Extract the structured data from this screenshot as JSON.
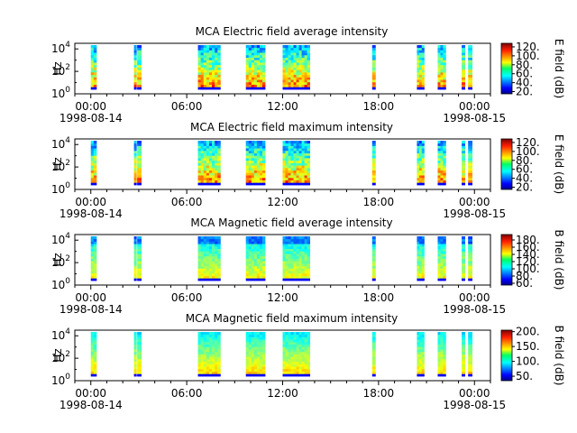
{
  "chart_data": [
    {
      "type": "heatmap",
      "title": "MCA  Electric field average intensity",
      "ylabel": "Hz",
      "colorbar_label": "E field (dB)",
      "colorbar_ticks": [
        "20.",
        "40.",
        "60.",
        "80.",
        "100.",
        "120."
      ],
      "colorbar_range": [
        15,
        128
      ],
      "colormap": "jet",
      "style": "electric",
      "x_ticks": [
        "00:00",
        "06:00",
        "12:00",
        "18:00",
        "00:00"
      ],
      "x_tick_sub": [
        "1998-08-14",
        "",
        "",
        "",
        "1998-08-15"
      ],
      "y_ticks": [
        "10^0",
        "10^2",
        "10^4"
      ],
      "xlim_hours": [
        -1,
        25
      ],
      "ylim_log10": [
        0,
        4.5
      ],
      "data_bursts_hours": [
        [
          0.0,
          0.35
        ],
        [
          2.7,
          2.85
        ],
        [
          2.9,
          3.15
        ],
        [
          6.7,
          8.1
        ],
        [
          9.7,
          10.9
        ],
        [
          12.0,
          13.7
        ],
        [
          17.6,
          17.8
        ],
        [
          20.4,
          20.85
        ],
        [
          21.7,
          22.2
        ],
        [
          23.2,
          23.4
        ],
        [
          23.6,
          23.85
        ]
      ]
    },
    {
      "type": "heatmap",
      "title": "MCA  Electric field maximum intensity",
      "ylabel": "Hz",
      "colorbar_label": "E field (dB)",
      "colorbar_ticks": [
        "20.",
        "40.",
        "60.",
        "80.",
        "100.",
        "120."
      ],
      "colorbar_range": [
        15,
        128
      ],
      "colormap": "jet",
      "style": "electric",
      "x_ticks": [
        "00:00",
        "06:00",
        "12:00",
        "18:00",
        "00:00"
      ],
      "x_tick_sub": [
        "1998-08-14",
        "",
        "",
        "",
        "1998-08-15"
      ],
      "y_ticks": [
        "10^0",
        "10^2",
        "10^4"
      ],
      "xlim_hours": [
        -1,
        25
      ],
      "ylim_log10": [
        0,
        4.5
      ],
      "data_bursts_hours": [
        [
          0.0,
          0.35
        ],
        [
          2.7,
          2.85
        ],
        [
          2.9,
          3.15
        ],
        [
          6.7,
          8.1
        ],
        [
          9.7,
          10.9
        ],
        [
          12.0,
          13.7
        ],
        [
          17.6,
          17.8
        ],
        [
          20.4,
          20.85
        ],
        [
          21.7,
          22.2
        ],
        [
          23.2,
          23.4
        ],
        [
          23.6,
          23.85
        ]
      ]
    },
    {
      "type": "heatmap",
      "title": "MCA  Magnetic field average intensity",
      "ylabel": "Hz",
      "colorbar_label": "B field (dB)",
      "colorbar_ticks": [
        "60.",
        "80.",
        "100.",
        "120.",
        "140.",
        "160.",
        "180."
      ],
      "colorbar_range": [
        55,
        195
      ],
      "colormap": "jet",
      "style": "magnetic",
      "x_ticks": [
        "00:00",
        "06:00",
        "12:00",
        "18:00",
        "00:00"
      ],
      "x_tick_sub": [
        "1998-08-14",
        "",
        "",
        "",
        "1998-08-15"
      ],
      "y_ticks": [
        "10^0",
        "10^2",
        "10^4"
      ],
      "xlim_hours": [
        -1,
        25
      ],
      "ylim_log10": [
        0,
        4.5
      ],
      "data_bursts_hours": [
        [
          0.0,
          0.35
        ],
        [
          2.7,
          2.85
        ],
        [
          2.9,
          3.15
        ],
        [
          6.7,
          8.1
        ],
        [
          9.7,
          10.9
        ],
        [
          12.0,
          13.7
        ],
        [
          17.6,
          17.8
        ],
        [
          20.4,
          20.85
        ],
        [
          21.7,
          22.2
        ],
        [
          23.2,
          23.4
        ],
        [
          23.6,
          23.85
        ]
      ]
    },
    {
      "type": "heatmap",
      "title": "MCA  Magnetic field maximum intensity",
      "ylabel": "Hz",
      "colorbar_label": "B field (dB)",
      "colorbar_ticks": [
        "50.",
        "100.",
        "150.",
        "200."
      ],
      "colorbar_range": [
        35,
        205
      ],
      "colormap": "jet",
      "style": "magnetic-max",
      "x_ticks": [
        "00:00",
        "06:00",
        "12:00",
        "18:00",
        "00:00"
      ],
      "x_tick_sub": [
        "1998-08-14",
        "",
        "",
        "",
        "1998-08-15"
      ],
      "y_ticks": [
        "10^0",
        "10^2",
        "10^4"
      ],
      "xlim_hours": [
        -1,
        25
      ],
      "ylim_log10": [
        0,
        4.5
      ],
      "data_bursts_hours": [
        [
          0.0,
          0.35
        ],
        [
          2.7,
          2.85
        ],
        [
          2.9,
          3.15
        ],
        [
          6.7,
          8.1
        ],
        [
          9.7,
          10.9
        ],
        [
          12.0,
          13.7
        ],
        [
          17.6,
          17.8
        ],
        [
          20.4,
          20.85
        ],
        [
          21.7,
          22.2
        ],
        [
          23.2,
          23.4
        ],
        [
          23.6,
          23.85
        ]
      ]
    }
  ]
}
